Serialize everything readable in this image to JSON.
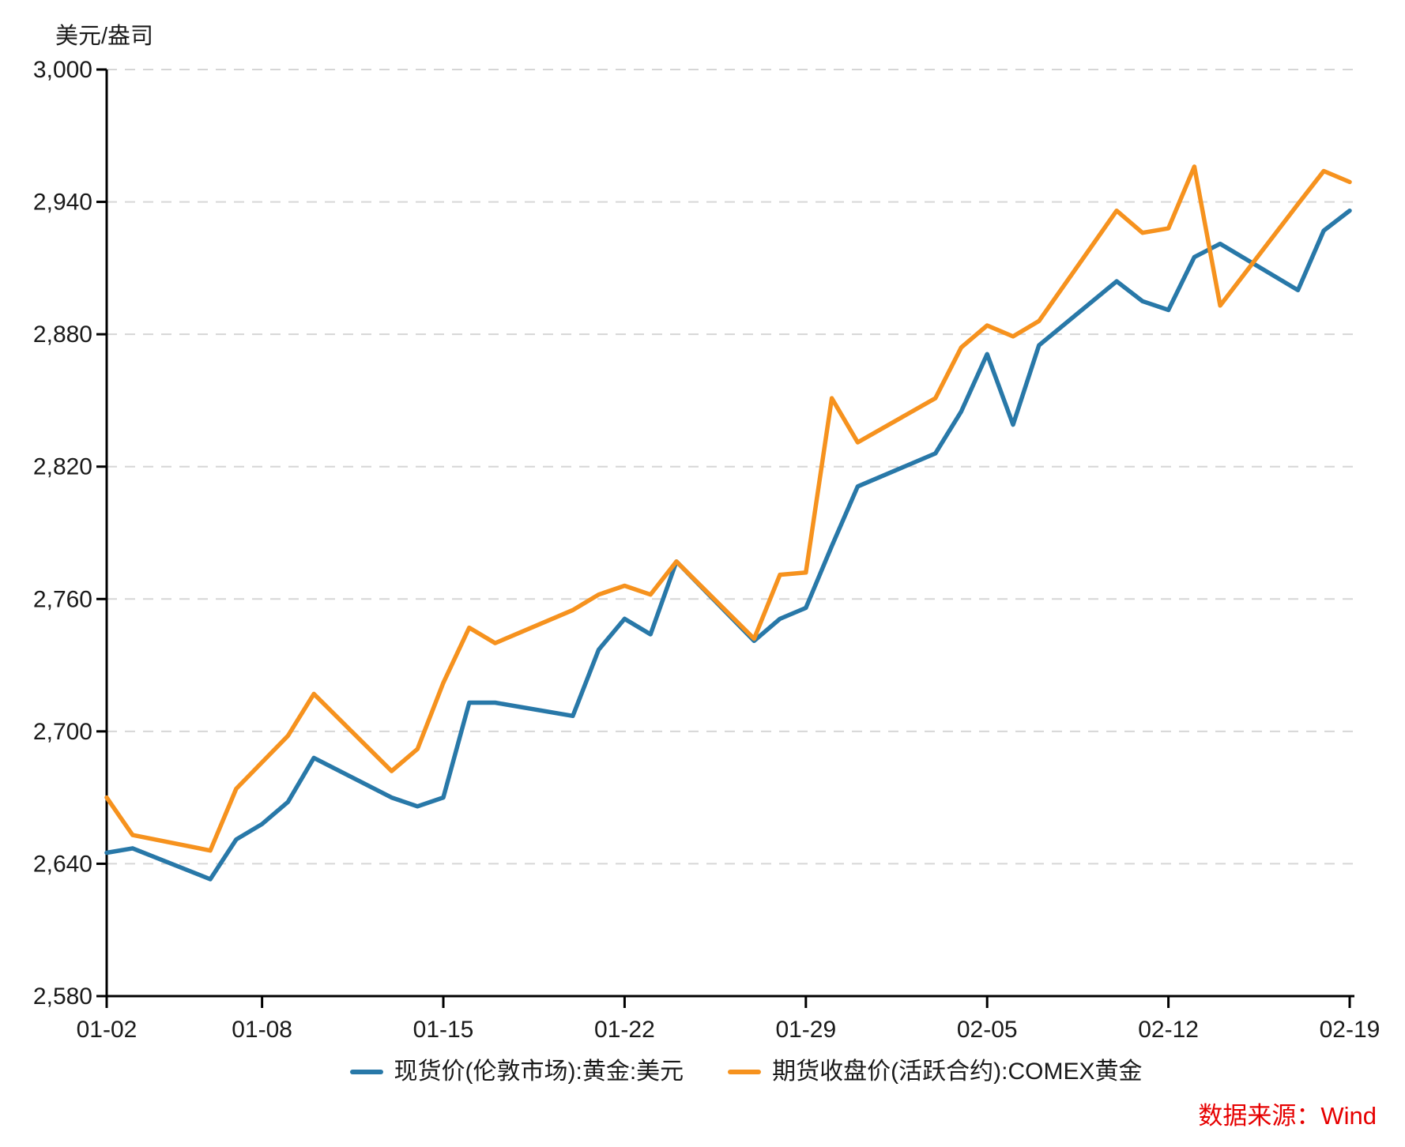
{
  "chart_data": {
    "type": "line",
    "title": "",
    "unit_label": "美元/盎司",
    "ylabel": "美元/盎司",
    "xlabel": "",
    "ylim": [
      2580,
      3000
    ],
    "y_tick_step": 60,
    "y_tick_labels": [
      "2,580",
      "2,640",
      "2,700",
      "2,760",
      "2,820",
      "2,880",
      "2,940",
      "3,000"
    ],
    "x_tick_labels": [
      "01-02",
      "01-08",
      "01-15",
      "01-22",
      "01-29",
      "02-05",
      "02-12",
      "02-19"
    ],
    "grid": "dashed-horizontal",
    "legend_position": "bottom",
    "categories": [
      "01-02",
      "01-03",
      "01-06",
      "01-07",
      "01-08",
      "01-09",
      "01-10",
      "01-13",
      "01-14",
      "01-15",
      "01-16",
      "01-17",
      "01-20",
      "01-21",
      "01-22",
      "01-23",
      "01-24",
      "01-27",
      "01-28",
      "01-29",
      "01-30",
      "01-31",
      "02-03",
      "02-04",
      "02-05",
      "02-06",
      "02-07",
      "02-10",
      "02-11",
      "02-12",
      "02-13",
      "02-14",
      "02-17",
      "02-18",
      "02-19"
    ],
    "series": [
      {
        "name": "现货价(伦敦市场):黄金:美元",
        "color": "#2878a8",
        "values": [
          2645,
          2647,
          2633,
          2651,
          2658,
          2668,
          2688,
          2670,
          2666,
          2670,
          2713,
          2713,
          2707,
          2737,
          2751,
          2744,
          2777,
          2741,
          2751,
          2756,
          2784,
          2811,
          2826,
          2845,
          2871,
          2839,
          2875,
          2904,
          2895,
          2891,
          2915,
          2921,
          2900,
          2927,
          2936
        ]
      },
      {
        "name": "期货收盘价(活跃合约):COMEX黄金",
        "color": "#f6921e",
        "values": [
          2670,
          2653,
          2646,
          2674,
          2686,
          2698,
          2717,
          2682,
          2692,
          2722,
          2747,
          2740,
          2755,
          2762,
          2766,
          2762,
          2777,
          2742,
          2771,
          2772,
          2851,
          2831,
          2851,
          2874,
          2884,
          2879,
          2886,
          2936,
          2926,
          2928,
          2956,
          2893,
          2939,
          2954,
          2949
        ]
      }
    ],
    "source": "数据来源：Wind",
    "source_color": "#e60000",
    "grid_color": "#d6d6d6",
    "axis_color": "#000000",
    "text_color": "#1a1a1a"
  }
}
